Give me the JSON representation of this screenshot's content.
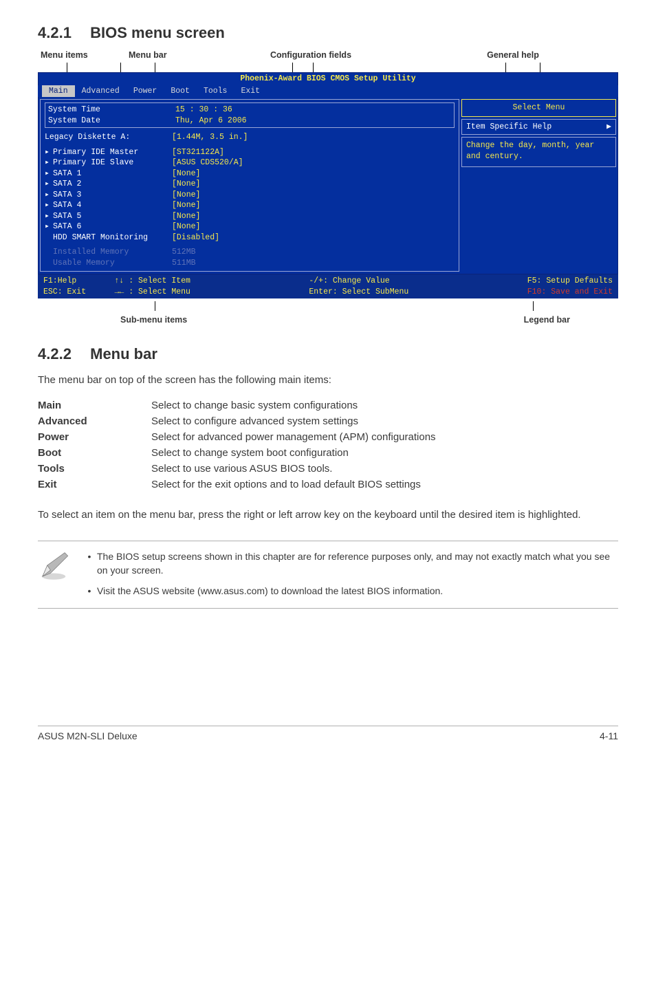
{
  "section1": {
    "number": "4.2.1",
    "title": "BIOS menu screen"
  },
  "top_labels": {
    "menu_items": "Menu items",
    "menu_bar": "Menu bar",
    "config": "Configuration fields",
    "help": "General help"
  },
  "bios": {
    "title": "Phoenix-Award BIOS CMOS Setup Utility",
    "tabs": [
      "Main",
      "Advanced",
      "Power",
      "Boot",
      "Tools",
      "Exit"
    ],
    "active_tab_index": 0,
    "rows_top": [
      {
        "label": "System Time",
        "value": "15 : 30 : 36"
      },
      {
        "label": "System Date",
        "value": "Thu, Apr 6  2006"
      }
    ],
    "rows_mid_header": {
      "label": "Legacy Diskette A:",
      "value": "[1.44M, 3.5 in.]"
    },
    "rows_mid": [
      {
        "label": "Primary IDE Master",
        "value": "[ST321122A]"
      },
      {
        "label": "Primary IDE Slave",
        "value": "[ASUS CDS520/A]"
      },
      {
        "label": "SATA 1",
        "value": "[None]"
      },
      {
        "label": "SATA 2",
        "value": "[None]"
      },
      {
        "label": "SATA 3",
        "value": "[None]"
      },
      {
        "label": "SATA 4",
        "value": "[None]"
      },
      {
        "label": "SATA 5",
        "value": "[None]"
      },
      {
        "label": "SATA 6",
        "value": "[None]"
      },
      {
        "label": "HDD SMART Monitoring",
        "value": "[Disabled]"
      }
    ],
    "rows_dim": [
      {
        "label": "Installed Memory",
        "value": "512MB"
      },
      {
        "label": "Usable Memory",
        "value": "511MB"
      }
    ],
    "help_title": "Select Menu",
    "help_sub": "Item Specific Help",
    "help_body": "Change the day, month, year and century.",
    "footer": {
      "c1": "F1:Help        ↑↓ : Select Item",
      "c2": "-/+: Change Value",
      "c3": "F5: Setup Defaults",
      "c4": "ESC: Exit      →← : Select Menu",
      "c5": "Enter: Select SubMenu",
      "c6": "F10: Save and Exit"
    }
  },
  "bottom_labels": {
    "submenu": "Sub-menu items",
    "legend": "Legend bar"
  },
  "section2": {
    "number": "4.2.2",
    "title": "Menu bar"
  },
  "intro2": "The menu bar on top of the screen has the following main items:",
  "opts": [
    {
      "k": "Main",
      "v": "Select to change basic system configurations"
    },
    {
      "k": "Advanced",
      "v": "Select to configure advanced system settings"
    },
    {
      "k": "Power",
      "v": "Select for advanced power management (APM) configurations"
    },
    {
      "k": "Boot",
      "v": "Select to change system boot configuration"
    },
    {
      "k": "Tools",
      "v": "Select to use various ASUS BIOS tools."
    },
    {
      "k": "Exit",
      "v": "Select for the exit options and to load default BIOS settings"
    }
  ],
  "para_after": "To select an item on the menu bar, press the right or left arrow key on the keyboard until the desired item is highlighted.",
  "notes": [
    "The BIOS setup screens shown in this chapter are for reference purposes only, and may not exactly match what you see on your screen.",
    "Visit the ASUS website (www.asus.com) to download the latest BIOS information."
  ],
  "footer_page": {
    "left": "ASUS M2N-SLI Deluxe",
    "right": "4-11"
  }
}
